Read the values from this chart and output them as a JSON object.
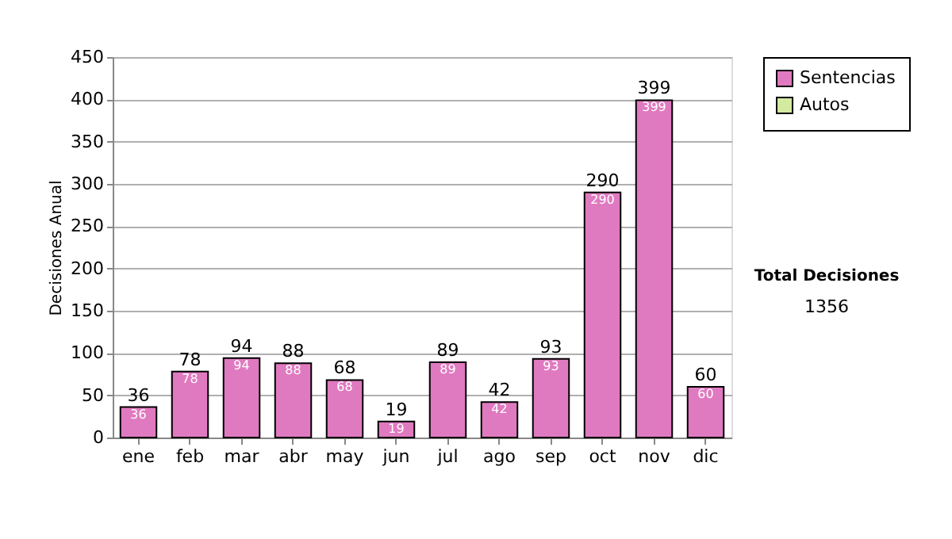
{
  "chart_data": {
    "type": "bar",
    "stacked": true,
    "ylabel": "Decisiones Anual",
    "categories": [
      "ene",
      "feb",
      "mar",
      "abr",
      "may",
      "jun",
      "jul",
      "ago",
      "sep",
      "oct",
      "nov",
      "dic"
    ],
    "series": [
      {
        "name": "Sentencias",
        "color": "#e07ac0",
        "values": [
          36,
          78,
          94,
          88,
          68,
          19,
          89,
          42,
          93,
          290,
          399,
          60
        ],
        "value_labels": [
          "36",
          "78",
          "94",
          "88",
          "68",
          "19",
          "89",
          "42",
          "93",
          "290",
          "399",
          "60"
        ]
      },
      {
        "name": "Autos",
        "color": "#d4eaa0",
        "values": [
          0,
          0,
          0,
          0,
          0,
          0,
          0,
          0,
          0,
          0,
          0,
          0
        ]
      }
    ],
    "totals": [
      "36",
      "78",
      "94",
      "88",
      "68",
      "19",
      "89",
      "42",
      "93",
      "290",
      "399",
      "60"
    ],
    "ylim": [
      0,
      450
    ],
    "yticks": [
      0,
      50,
      100,
      150,
      200,
      250,
      300,
      350,
      400,
      450
    ],
    "grid": "y",
    "legend": "right",
    "annotations": [
      "Total Decisiones",
      "1356"
    ]
  }
}
